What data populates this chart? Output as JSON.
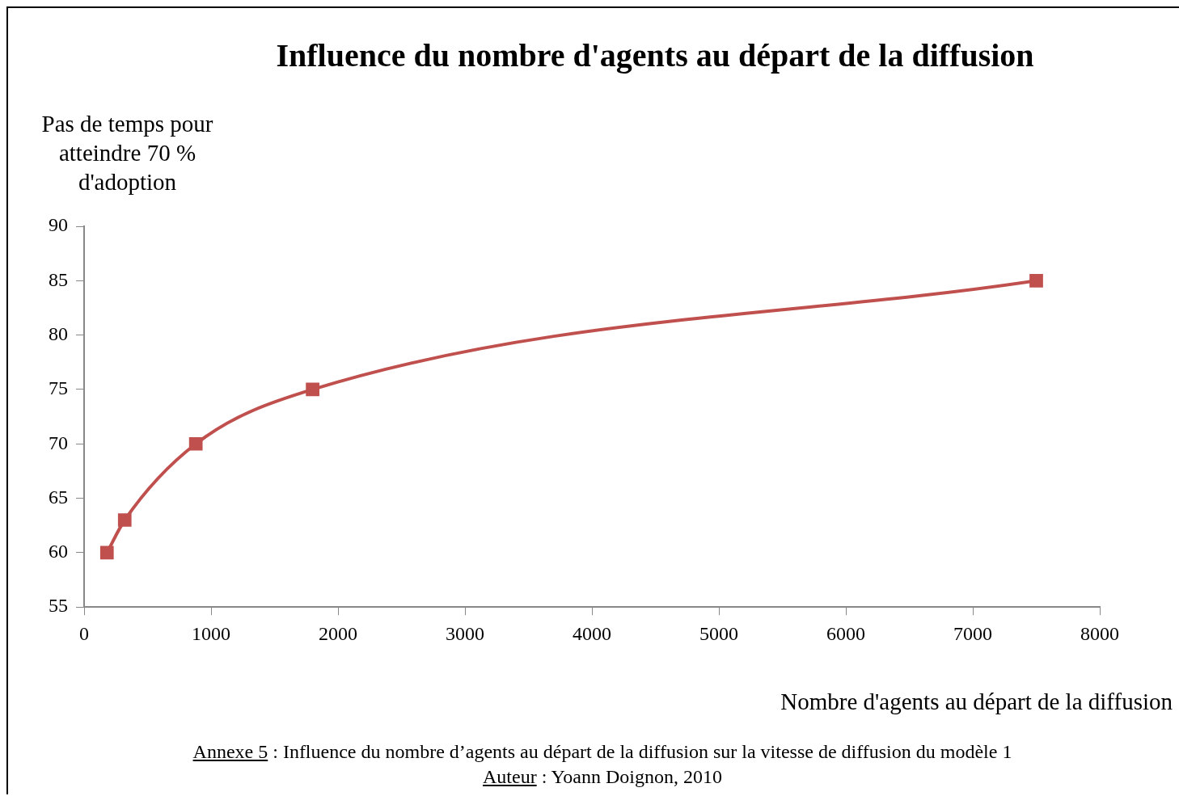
{
  "chart_data": {
    "type": "line",
    "title": "Influence du nombre d'agents au départ de la diffusion",
    "ylabel": "Pas de temps pour atteindre 70 % d'adoption",
    "xlabel": "Nombre d'agents au départ de la diffusion",
    "x": [
      180,
      320,
      880,
      1800,
      7500
    ],
    "series": [
      {
        "color": "#c0504d",
        "values": [
          60,
          63,
          70,
          75,
          85
        ]
      }
    ],
    "xlim": [
      0,
      8000
    ],
    "xticks": [
      0,
      1000,
      2000,
      3000,
      4000,
      5000,
      6000,
      7000,
      8000
    ],
    "ylim": [
      55,
      90
    ],
    "yticks": [
      55,
      60,
      65,
      70,
      75,
      80,
      85,
      90
    ],
    "marker": "square",
    "line_style": "solid",
    "legend": false,
    "annotations": [
      "Annexe 5 : Influence du nombre d’agents au départ de la diffusion sur la vitesse de diffusion du modèle 1",
      "Auteur : Yoann Doignon, 2010"
    ]
  }
}
